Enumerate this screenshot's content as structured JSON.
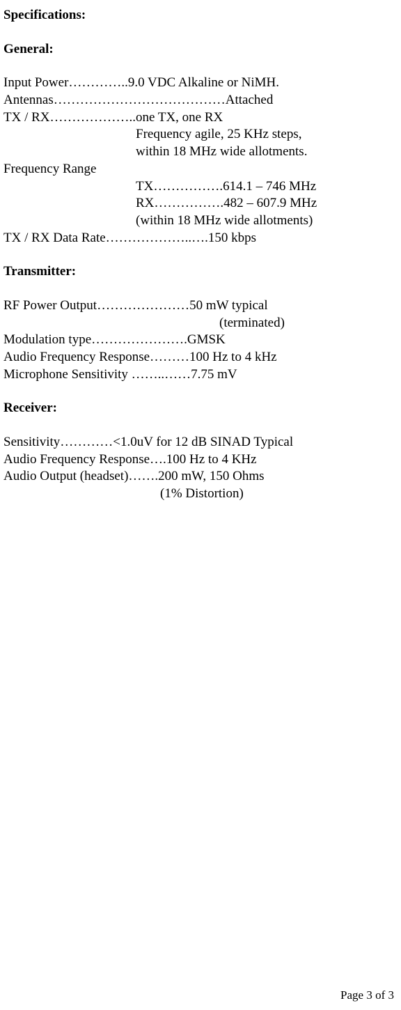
{
  "headings": {
    "specifications": "Specifications:",
    "general": "General:",
    "transmitter": "Transmitter:",
    "receiver": "Receiver:"
  },
  "general": {
    "input_power": "Input Power…………..9.0 VDC Alkaline or NiMH.",
    "antennas": "Antennas…………………………………Attached",
    "tx_rx": "TX / RX………………..one TX, one RX",
    "freq_agile": "Frequency agile, 25 KHz steps,",
    "freq_within": "within 18 MHz wide allotments.",
    "freq_range": "Frequency Range",
    "tx_range": "TX…………….614.1 – 746 MHz",
    "rx_range": "RX…………….482 – 607.9 MHz",
    "range_note": "(within 18 MHz wide allotments)",
    "data_rate": "TX / RX Data Rate………………..….150 kbps"
  },
  "transmitter": {
    "rf_power": "RF Power Output…………………50 mW typical",
    "terminated": "(terminated)",
    "modulation": "Modulation type………………….GMSK",
    "audio_freq": "Audio Frequency Response………100 Hz to 4 kHz",
    "mic_sens": "Microphone Sensitivity ……..……7.75 mV"
  },
  "receiver": {
    "sensitivity": "Sensitivity…………<1.0uV for 12 dB SINAD Typical",
    "audio_freq": "Audio Frequency Response….100 Hz to 4 KHz",
    "audio_out": "Audio Output (headset)…….200 mW, 150 Ohms",
    "distortion": "(1% Distortion)"
  },
  "footer": {
    "page": "Page 3 of 3"
  }
}
